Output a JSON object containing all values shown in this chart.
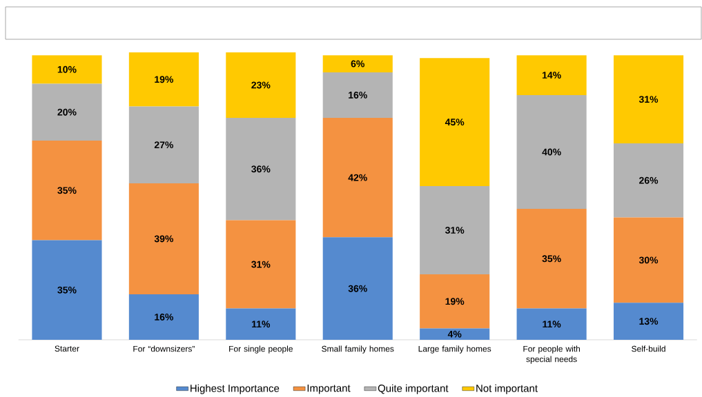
{
  "chart_data": {
    "type": "bar",
    "stacked": true,
    "legend": "bottom",
    "categories": [
      "Starter",
      "For “downsizers”",
      "For single people",
      "Small family homes",
      "Large family homes",
      "For people with special needs",
      "Self-build"
    ],
    "series": [
      {
        "name": "Highest Importance",
        "color": "#558ACF",
        "values": [
          35,
          16,
          11,
          36,
          4,
          11,
          13
        ],
        "value_labels": [
          "35%",
          "16%",
          "11%",
          "36%",
          "4%",
          "11%",
          "13%"
        ]
      },
      {
        "name": "Important",
        "color": "#F49241",
        "values": [
          35,
          39,
          31,
          42,
          19,
          35,
          30
        ],
        "value_labels": [
          "35%",
          "39%",
          "31%",
          "42%",
          "19%",
          "35%",
          "30%"
        ]
      },
      {
        "name": "Quite important",
        "color": "#B4B4B4",
        "values": [
          20,
          27,
          36,
          16,
          31,
          40,
          26
        ],
        "value_labels": [
          "20%",
          "27%",
          "36%",
          "16%",
          "31%",
          "40%",
          "26%"
        ]
      },
      {
        "name": "Not important",
        "color": "#FFC901",
        "values": [
          10,
          19,
          23,
          6,
          45,
          14,
          31
        ],
        "value_labels": [
          "10%",
          "19%",
          "23%",
          "6%",
          "45%",
          "14%",
          "31%"
        ]
      }
    ]
  }
}
